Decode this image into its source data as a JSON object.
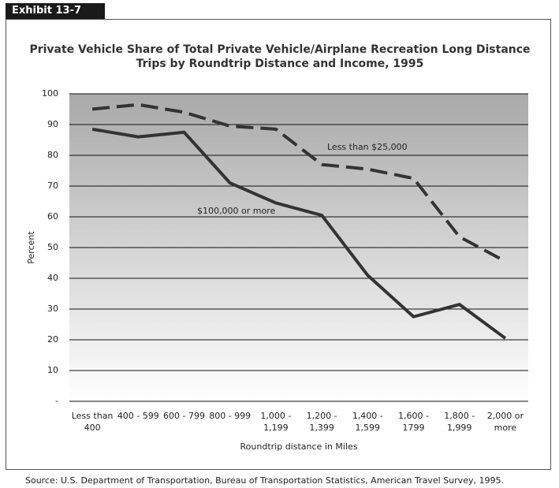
{
  "exhibit": "Exhibit 13-7",
  "source": "Source:  U.S. Department of Transportation, Bureau of Transportation Statistics, American Travel Survey, 1995.",
  "chart_data": {
    "type": "line",
    "title": "Private Vehicle Share of Total Private Vehicle/Airplane Recreation Long Distance Trips by Roundtrip Distance and Income, 1995",
    "x_label": "Roundtrip distance in Miles",
    "y_label": "Percent",
    "categories": [
      "Less than 400",
      "400 - 599",
      "600 - 799",
      "800 - 999",
      "1,000 - 1,199",
      "1,200 - 1,399",
      "1,400 - 1,599",
      "1,600 - 1799",
      "1,800 - 1,999",
      "2,000 or more"
    ],
    "series": [
      {
        "name": "Less than $25,000",
        "color": "#333333",
        "dashed": true,
        "values": [
          95,
          96.5,
          94,
          89.5,
          88.5,
          77,
          75.5,
          72.5,
          53.5,
          45.5
        ]
      },
      {
        "name": "$100,000 or more",
        "color": "#333333",
        "dashed": false,
        "values": [
          88.5,
          86,
          87.5,
          71,
          64.5,
          60.5,
          41,
          27.5,
          31.5,
          20.5
        ]
      }
    ],
    "ylim": [
      0,
      100
    ],
    "yticks": [
      {
        "value": 0,
        "label": "-"
      },
      10,
      20,
      30,
      40,
      50,
      60,
      70,
      80,
      90,
      100
    ],
    "grid": true
  }
}
